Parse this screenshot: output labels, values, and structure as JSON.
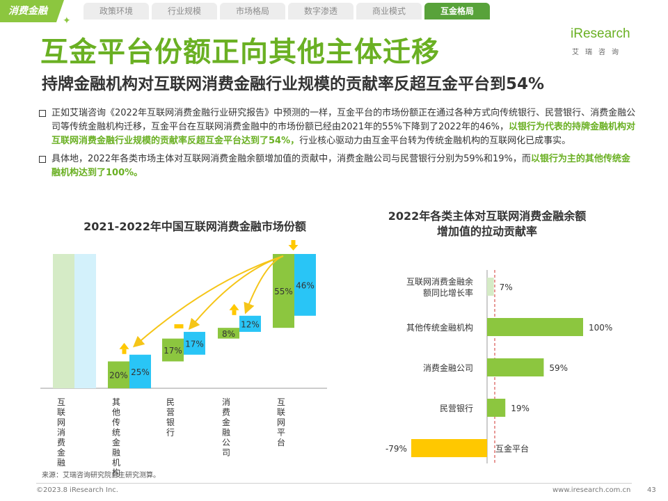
{
  "header": {
    "section_tag": "消费金融",
    "tabs": [
      "政策环境",
      "行业规模",
      "市场格局",
      "数字渗透",
      "商业模式",
      "互金格局"
    ],
    "active_tab": "互金格局"
  },
  "logo": {
    "name": "iResearch",
    "subtitle": "艾瑞咨询"
  },
  "title": "互金平台份额正向其他主体迁移",
  "subtitle": "持牌金融机构对互联网消费金融行业规模的贡献率反超互金平台到54%",
  "bullets": [
    {
      "text_before": "正如艾瑞咨询《2022年互联网消费金融行业研究报告》中预测的一样，互金平台的市场份额正在通过各种方式向传统银行、民营银行、消费金融公司等传统金融机构迁移，互金平台在互联网消费金融中的市场份额已经由2021年的55%下降到了2022年的46%，",
      "highlight": "以银行为代表的持牌金融机构对互联网消费金融行业规模的贡献率反超互金平台达到了54%，",
      "text_after": "行业核心驱动力由互金平台转为传统金融机构的互联网化已成事实。"
    },
    {
      "text_before": "具体地，2022年各类市场主体对互联网消费金融余额增加值的贡献中，消费金融公司与民营银行分别为59%和19%，而",
      "highlight": "以银行为主的其他传统金融机构达到了100%。",
      "text_after": ""
    }
  ],
  "colors": {
    "green_2021": "#8cc63f",
    "blue_2022": "#29c5f6",
    "green_bar": "#8cc63f",
    "light_green": "#d5ebc6",
    "yellow": "#ffc800",
    "brand": "#6ab023",
    "arrow": "#f5c518"
  },
  "chart_data": [
    {
      "type": "bar",
      "title": "2021-2022年中国互联网消费金融市场份额",
      "categories": [
        "互联网消费金融",
        "其他传统金融机构",
        "民营银行",
        "消费金融公司",
        "互联网平台"
      ],
      "series": [
        {
          "values": [
            100,
            20,
            17,
            8,
            55
          ]
        },
        {
          "values": [
            100,
            25,
            17,
            12,
            46
          ]
        }
      ],
      "labels": {
        "2021": [
          "",
          "20%",
          "17%",
          "8%",
          "55%"
        ],
        "2022": [
          "",
          "25%",
          "17%",
          "12%",
          "46%"
        ]
      },
      "change_markers": [
        "",
        "up",
        "flat",
        "up",
        "down"
      ]
    },
    {
      "type": "bar",
      "orientation": "horizontal",
      "title": "2022年各类主体对互联网消费金融余额增加值的拉动贡献率",
      "categories": [
        "互联网消费金融余额同比增长率",
        "其他传统金融机构",
        "消费金融公司",
        "民营银行",
        "互金平台"
      ],
      "values": [
        7,
        100,
        59,
        19,
        -79
      ],
      "value_labels": [
        "7%",
        "100%",
        "59%",
        "19%",
        "-79%"
      ]
    }
  ],
  "chart1_title": "2021-2022年中国互联网消费金融市场份额",
  "chart2_title_line1": "2022年各类主体对互联网消费金融余额",
  "chart2_title_line2": "增加值的拉动贡献率",
  "source": "来源：艾瑞咨询研究院自主研究测算。",
  "footer": {
    "copyright": "©2023.8 iResearch Inc.",
    "website": "www.iresearch.com.cn",
    "page": "43"
  }
}
